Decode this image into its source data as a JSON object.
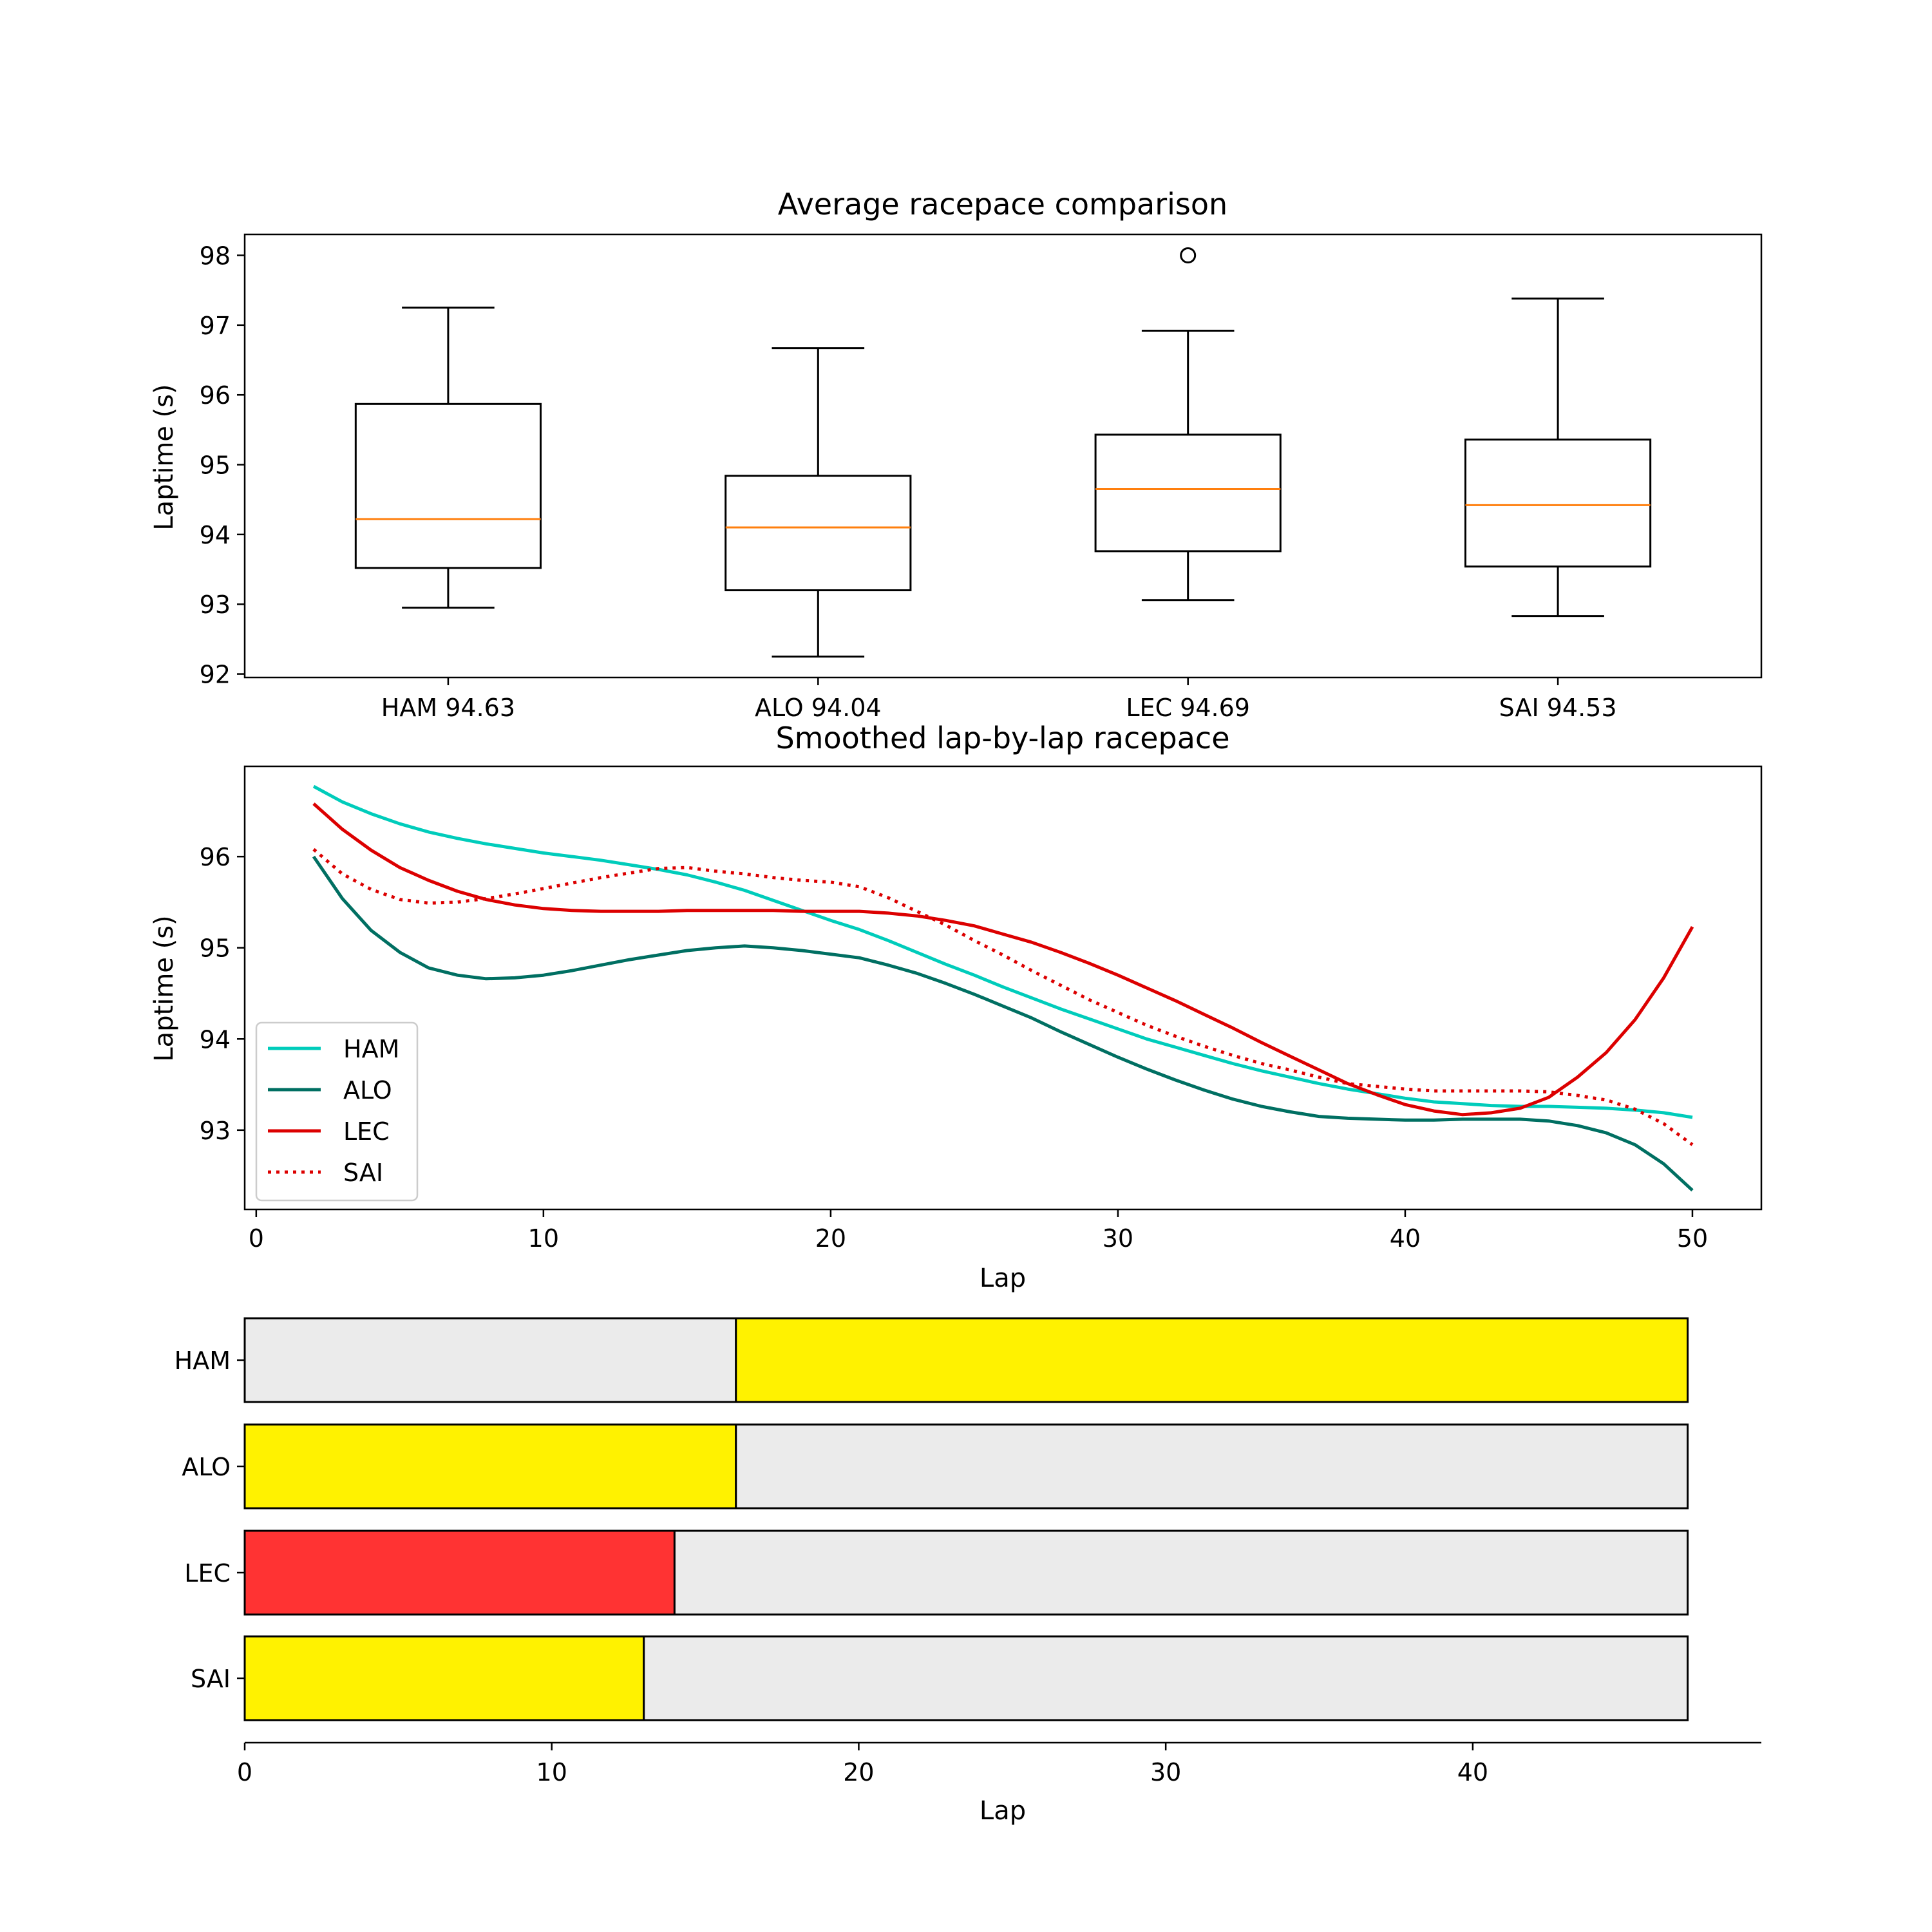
{
  "chart_data": [
    {
      "type": "box",
      "title": "Average racepace comparison",
      "xlabel": "",
      "ylabel": "Laptime (s)",
      "ylim": [
        91.95,
        98.3
      ],
      "yticks": [
        92,
        93,
        94,
        95,
        96,
        97,
        98
      ],
      "categories": [
        "HAM 94.63",
        "ALO 94.04",
        "LEC 94.69",
        "SAI 94.53"
      ],
      "boxes": [
        {
          "whisker_low": 92.95,
          "q1": 93.52,
          "median": 94.22,
          "q3": 95.87,
          "whisker_high": 97.25,
          "outliers": []
        },
        {
          "whisker_low": 92.25,
          "q1": 93.2,
          "median": 94.1,
          "q3": 94.84,
          "whisker_high": 96.67,
          "outliers": []
        },
        {
          "whisker_low": 93.06,
          "q1": 93.76,
          "median": 94.65,
          "q3": 95.43,
          "whisker_high": 96.92,
          "outliers": [
            98.0
          ]
        },
        {
          "whisker_low": 92.83,
          "q1": 93.54,
          "median": 94.42,
          "q3": 95.36,
          "whisker_high": 97.38,
          "outliers": []
        }
      ],
      "colors": {
        "box": "#000000",
        "median": "#ff7f0e"
      }
    },
    {
      "type": "line",
      "title": "Smoothed lap-by-lap racepace",
      "xlabel": "Lap",
      "ylabel": "Laptime (s)",
      "xlim": [
        -0.4,
        52.4
      ],
      "ylim": [
        92.13,
        96.99
      ],
      "xticks": [
        0,
        10,
        20,
        30,
        40,
        50
      ],
      "yticks": [
        93,
        94,
        95,
        96
      ],
      "legend_position": "lower-left",
      "x": [
        2,
        3,
        4,
        5,
        6,
        7,
        8,
        9,
        10,
        11,
        12,
        13,
        14,
        15,
        16,
        17,
        18,
        19,
        20,
        21,
        22,
        23,
        24,
        25,
        26,
        27,
        28,
        29,
        30,
        31,
        32,
        33,
        34,
        35,
        36,
        37,
        38,
        39,
        40,
        41,
        42,
        43,
        44,
        45,
        46,
        47,
        48,
        49,
        50
      ],
      "series": [
        {
          "name": "HAM",
          "color": "#00ccbb",
          "dash": "solid",
          "values": [
            96.77,
            96.6,
            96.47,
            96.36,
            96.27,
            96.2,
            96.14,
            96.09,
            96.04,
            96.0,
            95.96,
            95.91,
            95.86,
            95.8,
            95.72,
            95.63,
            95.52,
            95.41,
            95.3,
            95.2,
            95.08,
            94.95,
            94.82,
            94.7,
            94.57,
            94.45,
            94.33,
            94.22,
            94.11,
            94.0,
            93.91,
            93.82,
            93.73,
            93.65,
            93.58,
            93.51,
            93.45,
            93.4,
            93.35,
            93.31,
            93.29,
            93.27,
            93.26,
            93.26,
            93.25,
            93.24,
            93.22,
            93.19,
            93.14
          ]
        },
        {
          "name": "ALO",
          "color": "#006f62",
          "dash": "solid",
          "values": [
            96.0,
            95.54,
            95.19,
            94.95,
            94.78,
            94.7,
            94.66,
            94.67,
            94.7,
            94.75,
            94.81,
            94.87,
            94.92,
            94.97,
            95.0,
            95.02,
            95.0,
            94.97,
            94.93,
            94.89,
            94.81,
            94.72,
            94.61,
            94.49,
            94.36,
            94.23,
            94.08,
            93.94,
            93.8,
            93.67,
            93.55,
            93.44,
            93.34,
            93.26,
            93.2,
            93.15,
            93.13,
            93.12,
            93.11,
            93.11,
            93.12,
            93.12,
            93.12,
            93.1,
            93.05,
            92.97,
            92.84,
            92.63,
            92.34
          ]
        },
        {
          "name": "LEC",
          "color": "#dc0000",
          "dash": "solid",
          "values": [
            96.58,
            96.3,
            96.07,
            95.88,
            95.74,
            95.62,
            95.53,
            95.47,
            95.43,
            95.41,
            95.4,
            95.4,
            95.4,
            95.41,
            95.41,
            95.41,
            95.41,
            95.4,
            95.4,
            95.4,
            95.38,
            95.35,
            95.3,
            95.24,
            95.15,
            95.06,
            94.95,
            94.83,
            94.7,
            94.56,
            94.42,
            94.27,
            94.12,
            93.96,
            93.81,
            93.66,
            93.51,
            93.39,
            93.28,
            93.21,
            93.17,
            93.19,
            93.24,
            93.36,
            93.58,
            93.85,
            94.21,
            94.67,
            95.23
          ]
        },
        {
          "name": "SAI",
          "color": "#dc0000",
          "dash": "dotted",
          "values": [
            96.08,
            95.81,
            95.64,
            95.53,
            95.49,
            95.5,
            95.54,
            95.59,
            95.65,
            95.71,
            95.77,
            95.82,
            95.87,
            95.88,
            95.84,
            95.81,
            95.77,
            95.74,
            95.72,
            95.67,
            95.55,
            95.4,
            95.25,
            95.08,
            94.92,
            94.75,
            94.59,
            94.43,
            94.29,
            94.15,
            94.03,
            93.92,
            93.82,
            93.73,
            93.66,
            93.58,
            93.51,
            93.48,
            93.45,
            93.43,
            93.43,
            93.43,
            93.43,
            93.42,
            93.38,
            93.33,
            93.23,
            93.07,
            92.84
          ]
        }
      ]
    },
    {
      "type": "bar",
      "orientation": "horizontal",
      "stacked": true,
      "xlabel": "Lap",
      "ylabel": "",
      "xlim": [
        0,
        49.4
      ],
      "xticks": [
        0,
        10,
        20,
        30,
        40
      ],
      "categories": [
        "HAM",
        "ALO",
        "LEC",
        "SAI"
      ],
      "stints": [
        [
          {
            "start": 0,
            "end": 16,
            "color": "#ebebeb"
          },
          {
            "start": 16,
            "end": 47,
            "color": "#fff200"
          }
        ],
        [
          {
            "start": 0,
            "end": 16,
            "color": "#fff200"
          },
          {
            "start": 16,
            "end": 47,
            "color": "#ebebeb"
          }
        ],
        [
          {
            "start": 0,
            "end": 14,
            "color": "#ff3333"
          },
          {
            "start": 14,
            "end": 47,
            "color": "#ebebeb"
          }
        ],
        [
          {
            "start": 0,
            "end": 13,
            "color": "#fff200"
          },
          {
            "start": 13,
            "end": 47,
            "color": "#ebebeb"
          }
        ]
      ]
    }
  ]
}
